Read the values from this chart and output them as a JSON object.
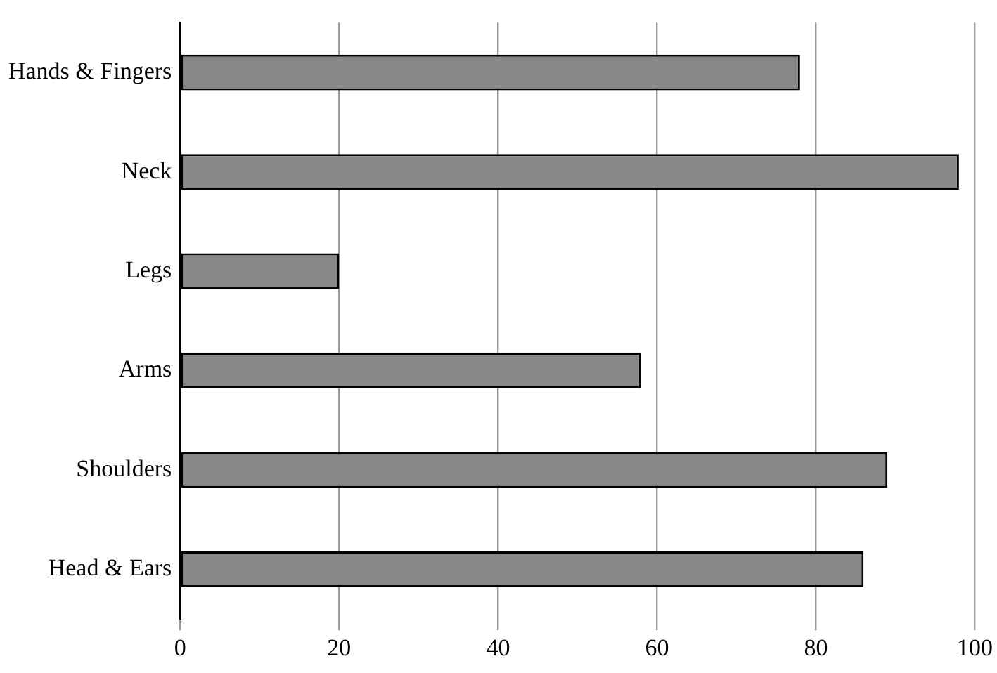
{
  "chart_data": {
    "type": "bar",
    "orientation": "horizontal",
    "categories": [
      "Hands & Fingers",
      "Neck",
      "Legs",
      "Arms",
      "Shoulders",
      "Head & Ears"
    ],
    "values": [
      78,
      98,
      20,
      58,
      89,
      86
    ],
    "color": "#888888",
    "xlim": [
      0,
      100
    ],
    "xticks": [
      0,
      20,
      40,
      60,
      80,
      100
    ],
    "grid": "x",
    "legend": false
  }
}
